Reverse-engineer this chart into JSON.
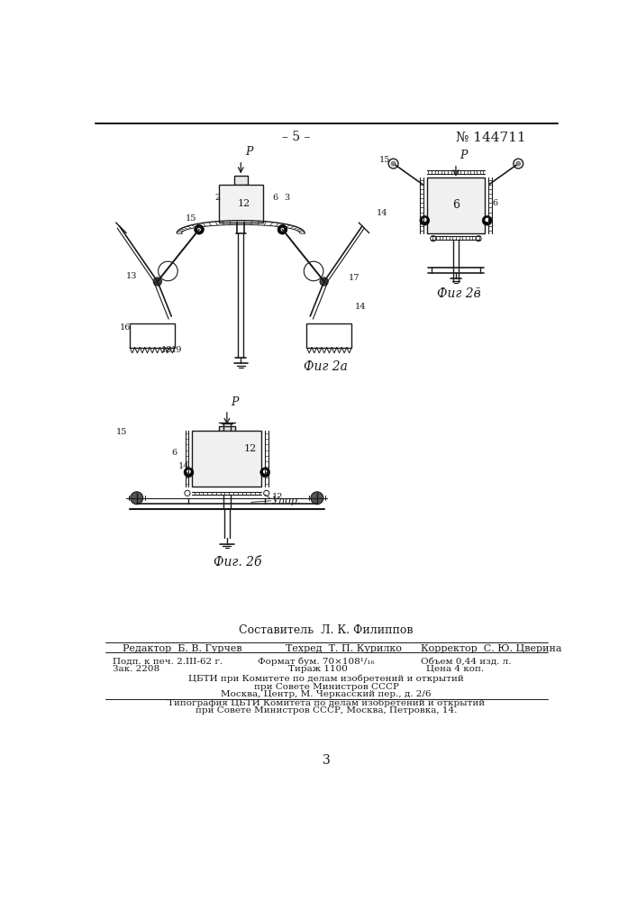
{
  "page_number": "– 5 –",
  "patent_number": "№ 144711",
  "fig2a_label": "Фиг 2а",
  "fig2b_label": "Фиг. 2б",
  "fig2v_label": "Фиг 2в̄",
  "sestavitel": "Составитель  Л. К. Филиппов",
  "cbti_line1": "ЦБТИ при Комитете по делам изобретений и открытий",
  "cbti_line2": "при Совете Министров СССР",
  "cbti_line3": "Москва, Центр, М. Черкасский пер., д. 2/6",
  "tipografiya_line1": "Типография ЦБТИ Комитета по делам изобретений и открытий",
  "tipografiya_line2": "при Совете Министров СССР, Москва, Петровка, 14.",
  "page_num_bottom": "3",
  "bg_color": "#ffffff",
  "line_color": "#1a1a1a"
}
